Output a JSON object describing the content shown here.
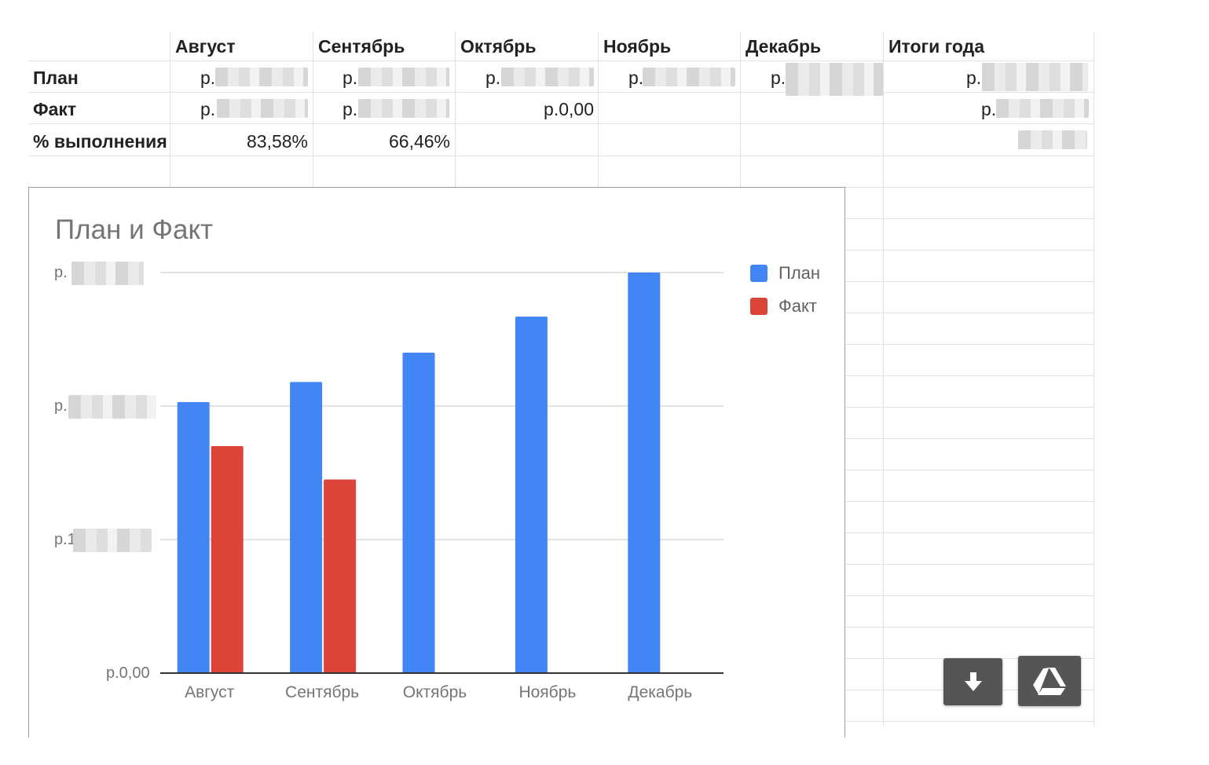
{
  "table": {
    "months": [
      "Август",
      "Сентябрь",
      "Октябрь",
      "Ноябрь",
      "Декабрь"
    ],
    "total_header": "Итоги года",
    "rows": [
      {
        "label": "План",
        "cells": [
          "р.",
          "р.",
          "р.",
          "р.",
          "р.",
          "р."
        ]
      },
      {
        "label": "Факт",
        "cells": [
          "р.",
          "р.",
          "р.0,00",
          "",
          "",
          "р."
        ]
      },
      {
        "label": "% выполнения",
        "cells": [
          "83,58%",
          "66,46%",
          "",
          "",
          "",
          ""
        ]
      }
    ]
  },
  "chart": {
    "title": "План и Факт",
    "y_tick_labels": [
      "р.",
      "р.",
      "р.1",
      "р.0,00"
    ],
    "colors": {
      "plan": "#4285f4",
      "fact": "#db4437"
    }
  },
  "chart_data": {
    "type": "bar",
    "title": "План и Факт",
    "categories": [
      "Август",
      "Сентябрь",
      "Октябрь",
      "Ноябрь",
      "Декабрь"
    ],
    "series": [
      {
        "name": "План",
        "values": [
          2.03,
          2.18,
          2.4,
          2.67,
          3.0
        ]
      },
      {
        "name": "Факт",
        "values": [
          1.7,
          1.45,
          0,
          null,
          null
        ]
      }
    ],
    "ylim": [
      0,
      3
    ],
    "y_ticks": [
      0,
      1,
      2,
      3
    ],
    "y_values_note_unit": "",
    "grid": true,
    "legend": "right"
  },
  "icons": {
    "download": "download-icon",
    "drive": "google-drive-icon"
  }
}
